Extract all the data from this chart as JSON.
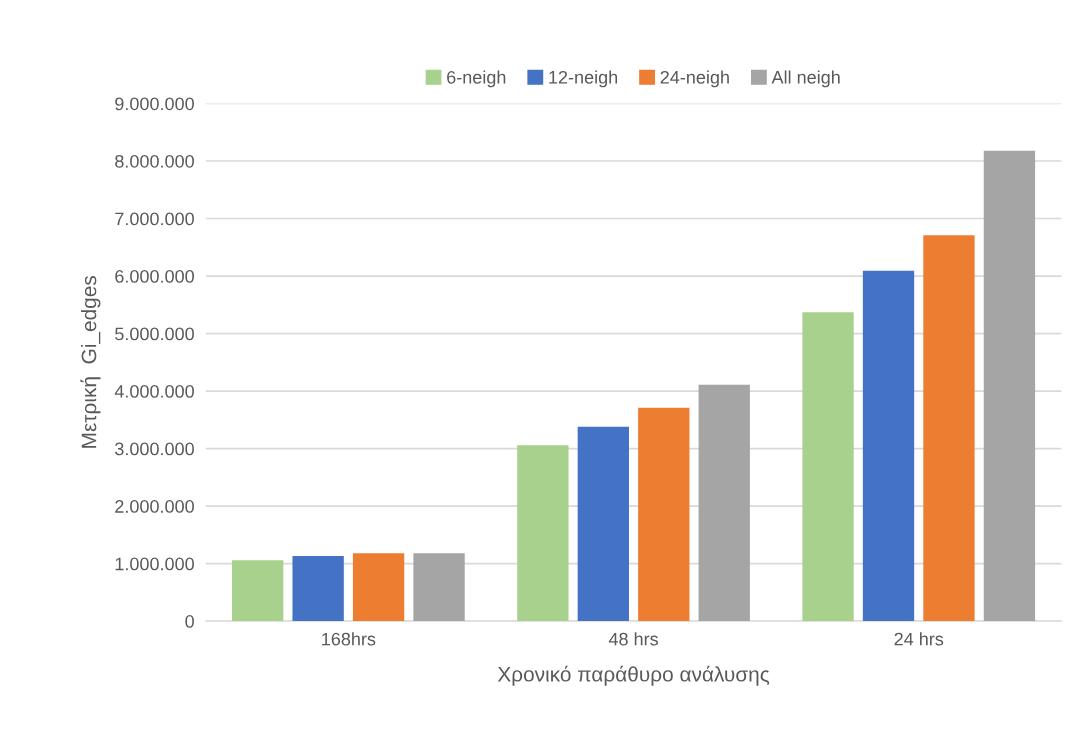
{
  "chart_data": {
    "type": "bar",
    "xlabel": "Χρονικό παράθυρο ανάλυσης",
    "ylabel": "Μετρική  Gi_edges",
    "categories": [
      "168hrs",
      "48 hrs",
      "24 hrs"
    ],
    "series": [
      {
        "name": "6-neigh",
        "color": "#a9d18e",
        "values": [
          1060000,
          3060000,
          5370000
        ]
      },
      {
        "name": "12-neigh",
        "color": "#4472c4",
        "values": [
          1130000,
          3380000,
          6090000
        ]
      },
      {
        "name": "24-neigh",
        "color": "#ed7d31",
        "values": [
          1180000,
          3710000,
          6710000
        ]
      },
      {
        "name": "All neigh",
        "color": "#a5a5a5",
        "values": [
          1180000,
          4110000,
          8180000
        ]
      }
    ],
    "ylim": [
      0,
      9000000
    ],
    "yticks": [
      0,
      {
        "value": 1000000,
        "label": "1.000.000"
      },
      {
        "value": 2000000,
        "label": "2.000.000"
      },
      {
        "value": 3000000,
        "label": "3.000.000"
      },
      {
        "value": 4000000,
        "label": "4.000.000"
      },
      {
        "value": 5000000,
        "label": "5.000.000"
      },
      {
        "value": 6000000,
        "label": "6.000.000"
      },
      {
        "value": 7000000,
        "label": "7.000.000"
      },
      {
        "value": 8000000,
        "label": "8.000.000"
      },
      {
        "value": 9000000,
        "label": "9.000.000"
      }
    ],
    "grid": "y",
    "legend": "top"
  }
}
